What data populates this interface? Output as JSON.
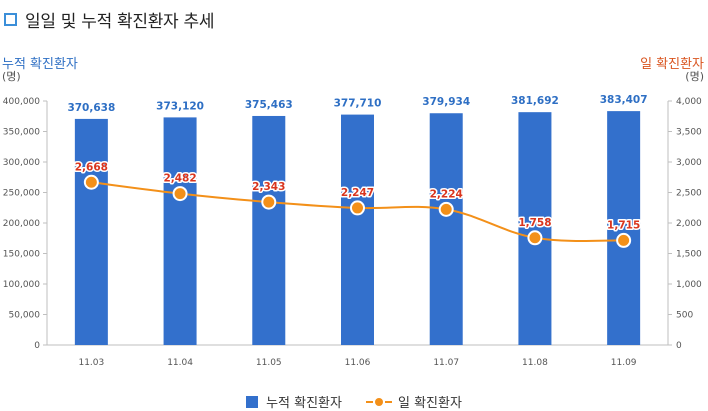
{
  "title": "일일 및 누적 확진환자 추세",
  "left_axis": {
    "name": "누적 확진환자",
    "unit": "(명)"
  },
  "right_axis": {
    "name": "일 확진환자",
    "unit": "(명)"
  },
  "legend": {
    "bar": "누적 확진환자",
    "line": "일 확진환자"
  },
  "colors": {
    "bar": "#3370cc",
    "line": "#f39019",
    "bar_label": "#2e6fc4",
    "line_label": "#d9351e",
    "title_icon": "#3b8fd9"
  },
  "chart_data": {
    "type": "bar",
    "combo": "bar-line dual axis",
    "categories": [
      "11.03",
      "11.04",
      "11.05",
      "11.06",
      "11.07",
      "11.08",
      "11.09"
    ],
    "series": [
      {
        "name": "누적 확진환자",
        "type": "bar",
        "axis": "left",
        "values": [
          370638,
          373120,
          375463,
          377710,
          379934,
          381692,
          383407
        ],
        "labels": [
          "370,638",
          "373,120",
          "375,463",
          "377,710",
          "379,934",
          "381,692",
          "383,407"
        ]
      },
      {
        "name": "일 확진환자",
        "type": "line",
        "axis": "right",
        "values": [
          2668,
          2482,
          2343,
          2247,
          2224,
          1758,
          1715
        ],
        "labels": [
          "2,668",
          "2,482",
          "2,343",
          "2,247",
          "2,224",
          "1,758",
          "1,715"
        ]
      }
    ],
    "ylim_left": [
      0,
      400000
    ],
    "ylim_right": [
      0,
      4000
    ],
    "yticks_left": [
      "0",
      "50,000",
      "100,000",
      "150,000",
      "200,000",
      "250,000",
      "300,000",
      "350,000",
      "400,000"
    ],
    "yticks_right": [
      "0",
      "500",
      "1,000",
      "1,500",
      "2,000",
      "2,500",
      "3,000",
      "3,500",
      "4,000"
    ],
    "legend_position": "bottom",
    "grid": false
  }
}
